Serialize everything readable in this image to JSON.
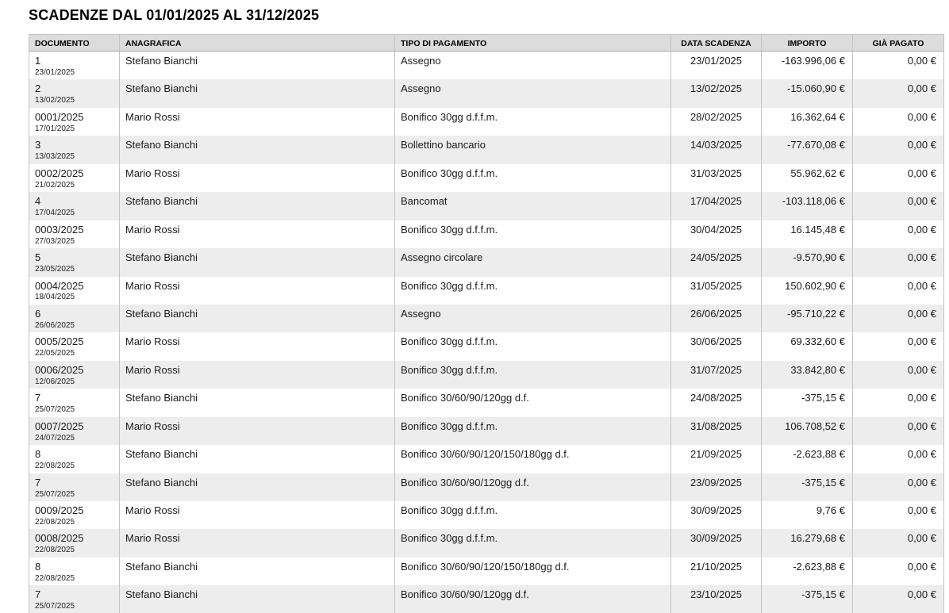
{
  "page": {
    "title": "SCADENZE DAL 01/01/2025 AL 31/12/2025"
  },
  "colors": {
    "header_bg": "#dcdcdc",
    "row_alt_bg": "#ededed",
    "border": "#c4c4c4",
    "text": "#1a1a1a"
  },
  "table": {
    "columns": [
      "DOCUMENTO",
      "ANAGRAFICA",
      "TIPO DI PAGAMENTO",
      "DATA SCADENZA",
      "IMPORTO",
      "GIÀ PAGATO"
    ],
    "rows": [
      {
        "documento": "1",
        "data_documento": "23/01/2025",
        "anagrafica": "Stefano Bianchi",
        "tipo_pagamento": "Assegno",
        "data_scadenza": "23/01/2025",
        "importo": "-163.996,06 €",
        "gia_pagato": "0,00 €"
      },
      {
        "documento": "2",
        "data_documento": "13/02/2025",
        "anagrafica": "Stefano Bianchi",
        "tipo_pagamento": "Assegno",
        "data_scadenza": "13/02/2025",
        "importo": "-15.060,90 €",
        "gia_pagato": "0,00 €"
      },
      {
        "documento": "0001/2025",
        "data_documento": "17/01/2025",
        "anagrafica": "Mario Rossi",
        "tipo_pagamento": "Bonifico 30gg d.f.f.m.",
        "data_scadenza": "28/02/2025",
        "importo": "16.362,64 €",
        "gia_pagato": "0,00 €"
      },
      {
        "documento": "3",
        "data_documento": "13/03/2025",
        "anagrafica": "Stefano Bianchi",
        "tipo_pagamento": "Bollettino bancario",
        "data_scadenza": "14/03/2025",
        "importo": "-77.670,08 €",
        "gia_pagato": "0,00 €"
      },
      {
        "documento": "0002/2025",
        "data_documento": "21/02/2025",
        "anagrafica": "Mario Rossi",
        "tipo_pagamento": "Bonifico 30gg d.f.f.m.",
        "data_scadenza": "31/03/2025",
        "importo": "55.962,62 €",
        "gia_pagato": "0,00 €"
      },
      {
        "documento": "4",
        "data_documento": "17/04/2025",
        "anagrafica": "Stefano Bianchi",
        "tipo_pagamento": "Bancomat",
        "data_scadenza": "17/04/2025",
        "importo": "-103.118,06 €",
        "gia_pagato": "0,00 €"
      },
      {
        "documento": "0003/2025",
        "data_documento": "27/03/2025",
        "anagrafica": "Mario Rossi",
        "tipo_pagamento": "Bonifico 30gg d.f.f.m.",
        "data_scadenza": "30/04/2025",
        "importo": "16.145,48 €",
        "gia_pagato": "0,00 €"
      },
      {
        "documento": "5",
        "data_documento": "23/05/2025",
        "anagrafica": "Stefano Bianchi",
        "tipo_pagamento": "Assegno circolare",
        "data_scadenza": "24/05/2025",
        "importo": "-9.570,90 €",
        "gia_pagato": "0,00 €"
      },
      {
        "documento": "0004/2025",
        "data_documento": "18/04/2025",
        "anagrafica": "Mario Rossi",
        "tipo_pagamento": "Bonifico 30gg d.f.f.m.",
        "data_scadenza": "31/05/2025",
        "importo": "150.602,90 €",
        "gia_pagato": "0,00 €"
      },
      {
        "documento": "6",
        "data_documento": "26/06/2025",
        "anagrafica": "Stefano Bianchi",
        "tipo_pagamento": "Assegno",
        "data_scadenza": "26/06/2025",
        "importo": "-95.710,22 €",
        "gia_pagato": "0,00 €"
      },
      {
        "documento": "0005/2025",
        "data_documento": "22/05/2025",
        "anagrafica": "Mario Rossi",
        "tipo_pagamento": "Bonifico 30gg d.f.f.m.",
        "data_scadenza": "30/06/2025",
        "importo": "69.332,60 €",
        "gia_pagato": "0,00 €"
      },
      {
        "documento": "0006/2025",
        "data_documento": "12/06/2025",
        "anagrafica": "Mario Rossi",
        "tipo_pagamento": "Bonifico 30gg d.f.f.m.",
        "data_scadenza": "31/07/2025",
        "importo": "33.842,80 €",
        "gia_pagato": "0,00 €"
      },
      {
        "documento": "7",
        "data_documento": "25/07/2025",
        "anagrafica": "Stefano Bianchi",
        "tipo_pagamento": "Bonifico 30/60/90/120gg d.f.",
        "data_scadenza": "24/08/2025",
        "importo": "-375,15 €",
        "gia_pagato": "0,00 €"
      },
      {
        "documento": "0007/2025",
        "data_documento": "24/07/2025",
        "anagrafica": "Mario Rossi",
        "tipo_pagamento": "Bonifico 30gg d.f.f.m.",
        "data_scadenza": "31/08/2025",
        "importo": "106.708,52 €",
        "gia_pagato": "0,00 €"
      },
      {
        "documento": "8",
        "data_documento": "22/08/2025",
        "anagrafica": "Stefano Bianchi",
        "tipo_pagamento": "Bonifico 30/60/90/120/150/180gg d.f.",
        "data_scadenza": "21/09/2025",
        "importo": "-2.623,88 €",
        "gia_pagato": "0,00 €"
      },
      {
        "documento": "7",
        "data_documento": "25/07/2025",
        "anagrafica": "Stefano Bianchi",
        "tipo_pagamento": "Bonifico 30/60/90/120gg d.f.",
        "data_scadenza": "23/09/2025",
        "importo": "-375,15 €",
        "gia_pagato": "0,00 €"
      },
      {
        "documento": "0009/2025",
        "data_documento": "22/08/2025",
        "anagrafica": "Mario Rossi",
        "tipo_pagamento": "Bonifico 30gg d.f.f.m.",
        "data_scadenza": "30/09/2025",
        "importo": "9,76 €",
        "gia_pagato": "0,00 €"
      },
      {
        "documento": "0008/2025",
        "data_documento": "22/08/2025",
        "anagrafica": "Mario Rossi",
        "tipo_pagamento": "Bonifico 30gg d.f.f.m.",
        "data_scadenza": "30/09/2025",
        "importo": "16.279,68 €",
        "gia_pagato": "0,00 €"
      },
      {
        "documento": "8",
        "data_documento": "22/08/2025",
        "anagrafica": "Stefano Bianchi",
        "tipo_pagamento": "Bonifico 30/60/90/120/150/180gg d.f.",
        "data_scadenza": "21/10/2025",
        "importo": "-2.623,88 €",
        "gia_pagato": "0,00 €"
      },
      {
        "documento": "7",
        "data_documento": "25/07/2025",
        "anagrafica": "Stefano Bianchi",
        "tipo_pagamento": "Bonifico 30/60/90/120gg d.f.",
        "data_scadenza": "23/10/2025",
        "importo": "-375,15 €",
        "gia_pagato": "0,00 €"
      }
    ]
  }
}
